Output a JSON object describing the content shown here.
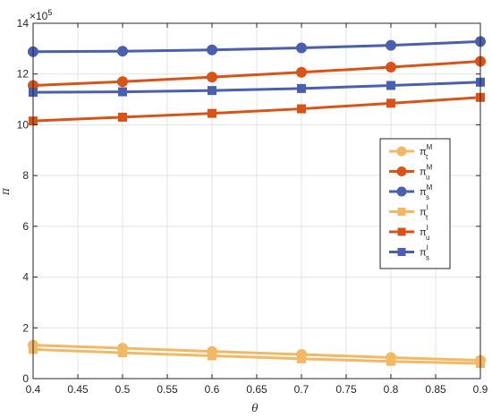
{
  "chart_data": {
    "type": "line",
    "xlabel": "θ",
    "ylabel": "π",
    "y_multiplier": "×10",
    "y_exponent": "5",
    "xlim": [
      0.4,
      0.9
    ],
    "ylim": [
      0,
      14
    ],
    "x_ticks": [
      "0.4",
      "0.45",
      "0.5",
      "0.55",
      "0.6",
      "0.65",
      "0.7",
      "0.75",
      "0.8",
      "0.85",
      "0.9"
    ],
    "y_ticks": [
      "0",
      "2",
      "4",
      "6",
      "8",
      "10",
      "12",
      "14"
    ],
    "grid": true,
    "legend_position": "right",
    "x": [
      0.4,
      0.5,
      0.6,
      0.7,
      0.8,
      0.9
    ],
    "series": [
      {
        "name": "π",
        "sub": "t",
        "sup": "M",
        "marker": "circle",
        "color": "#F2B866",
        "values": [
          1.32,
          1.2,
          1.07,
          0.95,
          0.83,
          0.72
        ]
      },
      {
        "name": "π",
        "sub": "u",
        "sup": "M",
        "marker": "circle",
        "color": "#D95319",
        "values": [
          11.55,
          11.7,
          11.88,
          12.07,
          12.27,
          12.5
        ]
      },
      {
        "name": "π",
        "sub": "s",
        "sup": "M",
        "marker": "circle",
        "color": "#4A5FAD",
        "values": [
          12.88,
          12.9,
          12.95,
          13.03,
          13.13,
          13.28
        ]
      },
      {
        "name": "π",
        "sub": "t",
        "sup": "I",
        "marker": "square",
        "color": "#F2B866",
        "values": [
          1.15,
          1.02,
          0.9,
          0.78,
          0.68,
          0.6
        ]
      },
      {
        "name": "π",
        "sub": "u",
        "sup": "I",
        "marker": "square",
        "color": "#D95319",
        "values": [
          10.15,
          10.3,
          10.45,
          10.63,
          10.85,
          11.08
        ]
      },
      {
        "name": "π",
        "sub": "s",
        "sup": "I",
        "marker": "square",
        "color": "#4A5FAD",
        "values": [
          11.28,
          11.3,
          11.35,
          11.43,
          11.55,
          11.68
        ]
      }
    ]
  }
}
